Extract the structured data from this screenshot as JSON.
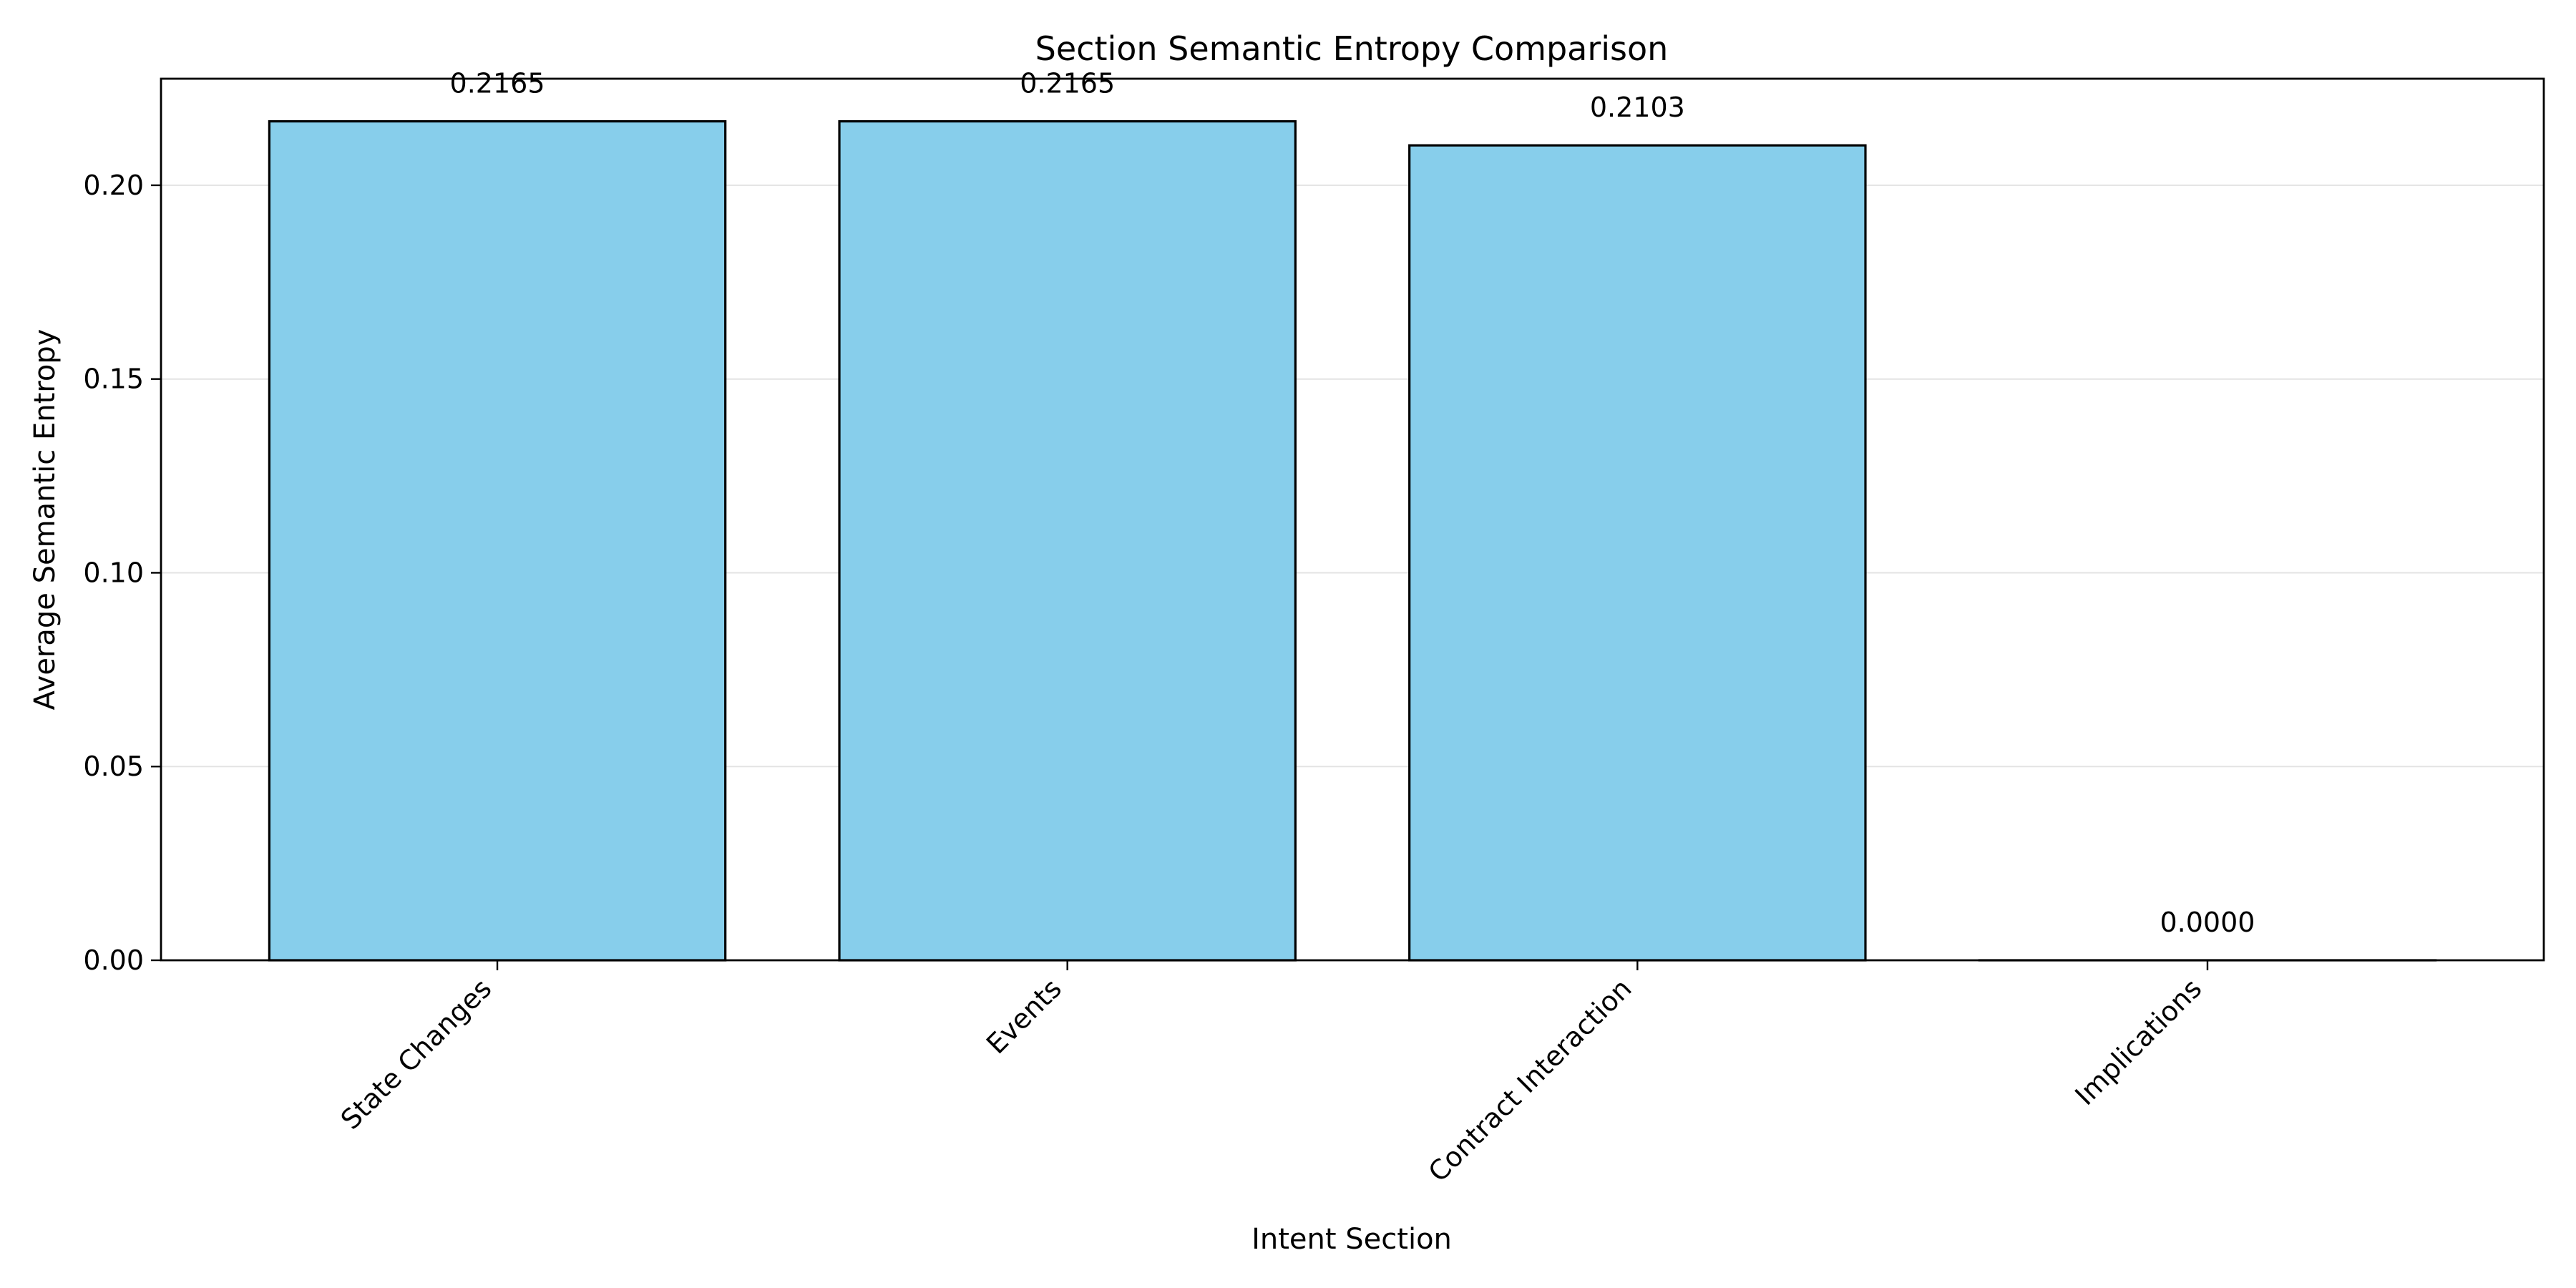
{
  "chart_data": {
    "type": "bar",
    "title": "Section Semantic Entropy Comparison",
    "xlabel": "Intent Section",
    "ylabel": "Average Semantic Entropy",
    "categories": [
      "State Changes",
      "Events",
      "Contract Interaction",
      "Implications"
    ],
    "values": [
      0.2165,
      0.2165,
      0.2103,
      0.0
    ],
    "data_labels": [
      "0.2165",
      "0.2165",
      "0.2103",
      "0.0000"
    ],
    "ylim": [
      0,
      0.2275
    ],
    "yticks": [
      0.0,
      0.05,
      0.1,
      0.15,
      0.2
    ],
    "ytick_labels": [
      "0.00",
      "0.05",
      "0.10",
      "0.15",
      "0.20"
    ],
    "grid": "y-axis only",
    "bar_color": "#87CEEB",
    "edge_color": "#000000"
  }
}
